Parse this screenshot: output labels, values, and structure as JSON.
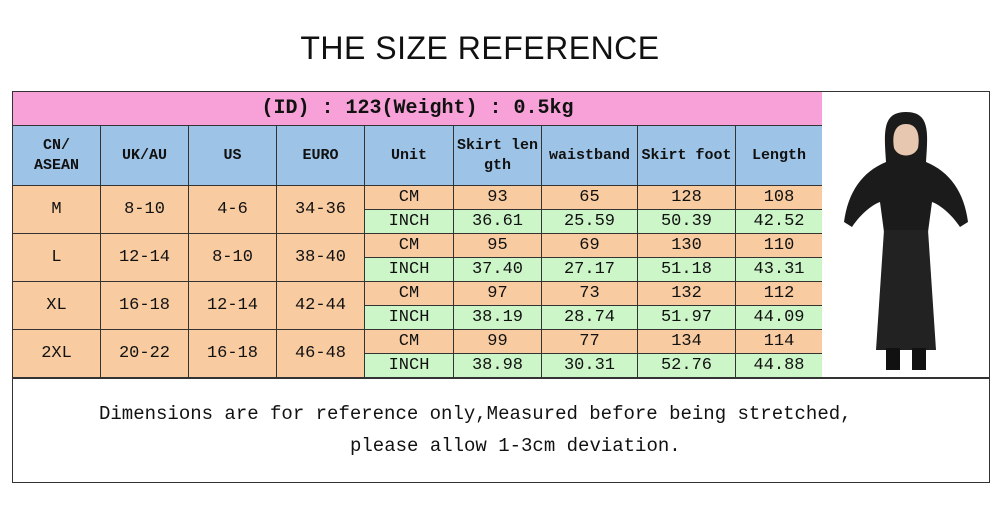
{
  "title": "THE SIZE REFERENCE",
  "table": {
    "banner": "(ID) : 123(Weight) : 0.5kg",
    "header": [
      "CN/\nASEAN",
      "UK/AU",
      "US",
      "EURO",
      "Unit",
      "Skirt length",
      "waistband",
      "Skirt foot",
      "Length"
    ],
    "rows": [
      {
        "size": "M",
        "uk_au": "8-10",
        "us": "4-6",
        "euro": "34-36",
        "units": [
          {
            "unit": "CM",
            "values": [
              "93",
              "65",
              "128",
              "108"
            ]
          },
          {
            "unit": "INCH",
            "values": [
              "36.61",
              "25.59",
              "50.39",
              "42.52"
            ]
          }
        ]
      },
      {
        "size": "L",
        "uk_au": "12-14",
        "us": "8-10",
        "euro": "38-40",
        "units": [
          {
            "unit": "CM",
            "values": [
              "95",
              "69",
              "130",
              "110"
            ]
          },
          {
            "unit": "INCH",
            "values": [
              "37.40",
              "27.17",
              "51.18",
              "43.31"
            ]
          }
        ]
      },
      {
        "size": "XL",
        "uk_au": "16-18",
        "us": "12-14",
        "euro": "42-44",
        "units": [
          {
            "unit": "CM",
            "values": [
              "97",
              "73",
              "132",
              "112"
            ]
          },
          {
            "unit": "INCH",
            "values": [
              "38.19",
              "28.74",
              "51.97",
              "44.09"
            ]
          }
        ]
      },
      {
        "size": "2XL",
        "uk_au": "20-22",
        "us": "16-18",
        "euro": "46-48",
        "units": [
          {
            "unit": "CM",
            "values": [
              "99",
              "77",
              "134",
              "114"
            ]
          },
          {
            "unit": "INCH",
            "values": [
              "38.98",
              "30.31",
              "52.76",
              "44.88"
            ]
          }
        ]
      }
    ]
  },
  "note": [
    "Dimensions are for reference only,Measured before being stretched,",
    "please allow 1-3cm deviation."
  ]
}
